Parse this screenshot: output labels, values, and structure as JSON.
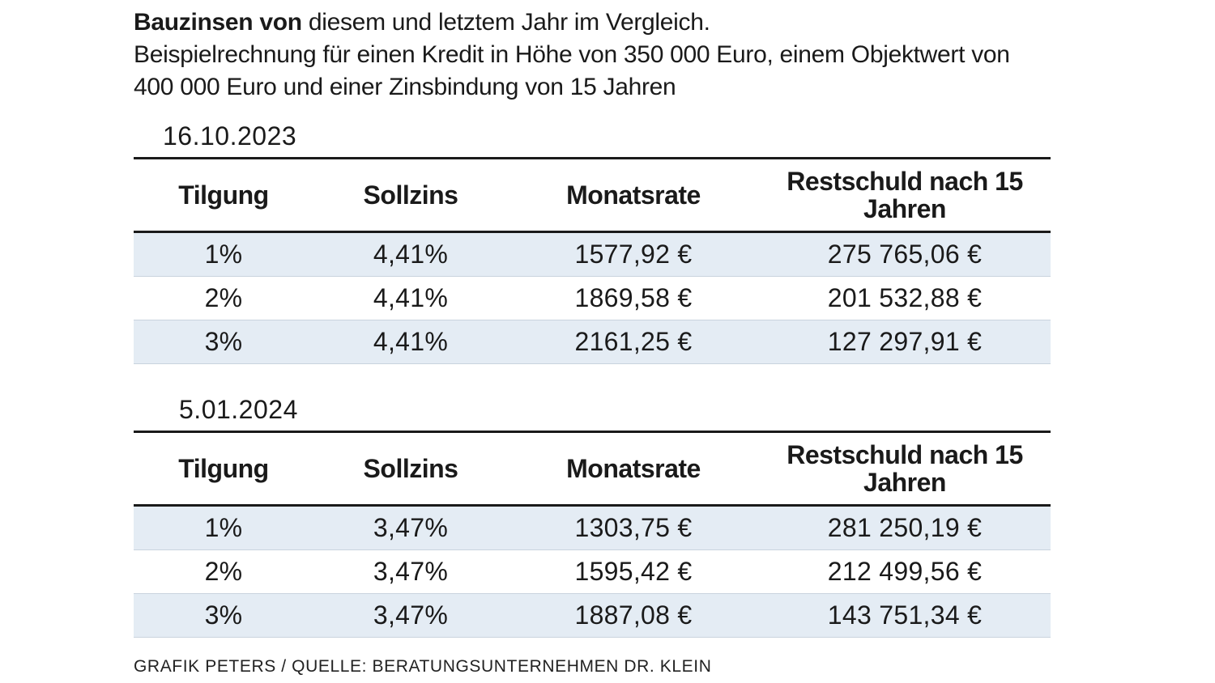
{
  "title": {
    "bold": "Bauzinsen von",
    "rest": " diesem und letztem Jahr im Vergleich."
  },
  "subtitle": "Beispielrechnung für einen Kredit in Höhe von 350 000 Euro, einem Objektwert von 400 000 Euro und einer Zinsbindung von 15 Jahren",
  "chart_data": [
    {
      "type": "table",
      "title": "16.10.2023",
      "columns": [
        "Tilgung",
        "Sollzins",
        "Monatsrate",
        "Restschuld nach 15 Jahren"
      ],
      "rows": [
        [
          "1%",
          "4,41%",
          "1577,92 €",
          "275 765,06 €"
        ],
        [
          "2%",
          "4,41%",
          "1869,58 €",
          "201 532,88 €"
        ],
        [
          "3%",
          "4,41%",
          "2161,25 €",
          "127 297,91 €"
        ]
      ]
    },
    {
      "type": "table",
      "title": "5.01.2024",
      "columns": [
        "Tilgung",
        "Sollzins",
        "Monatsrate",
        "Restschuld nach 15 Jahren"
      ],
      "rows": [
        [
          "1%",
          "3,47%",
          "1303,75 €",
          "281 250,19 €"
        ],
        [
          "2%",
          "3,47%",
          "1595,42 €",
          "212 499,56 €"
        ],
        [
          "3%",
          "3,47%",
          "1887,08 €",
          "143 751,34 €"
        ]
      ]
    }
  ],
  "source": "GRAFIK PETERS / QUELLE: BERATUNGSUNTERNEHMEN DR. KLEIN",
  "colors": {
    "row_stripe": "#e4ecf4",
    "rule": "#1a1a1a"
  }
}
